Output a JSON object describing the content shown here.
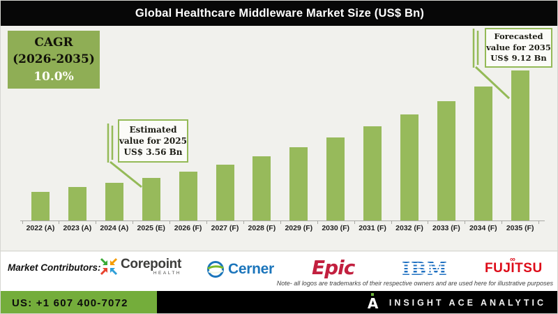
{
  "title_bar": {
    "title": "Global Healthcare Middleware Market Size (US$ Bn)"
  },
  "chart_data": {
    "type": "bar",
    "title": "Global Healthcare Middleware Market Size (US$ Bn)",
    "categories": [
      "2022 (A)",
      "2023 (A)",
      "2024 (A)",
      "2025 (E)",
      "2026 (F)",
      "2027 (F)",
      "2028 (F)",
      "2029 (F)",
      "2030 (F)",
      "2031 (F)",
      "2032 (F)",
      "2033 (F)",
      "2034 (F)",
      "2035 (F)"
    ],
    "values": [
      2.82,
      3.08,
      3.31,
      3.56,
      3.87,
      4.26,
      4.68,
      5.15,
      5.67,
      6.23,
      6.86,
      7.54,
      8.29,
      9.12
    ],
    "xlabel": "",
    "ylabel": "",
    "ylim": [
      1.35,
      10.0
    ],
    "grid": false,
    "legend": "none",
    "bar_color": "#97ba5b",
    "axis_color": "#a8a8a4",
    "background_color": "#f1f1ed",
    "cagr_pct_2026_2035": "10.0%",
    "annotations": {
      "cagr_box": {
        "line1": "CAGR",
        "line2": "(2026-2035)",
        "line3": "10.0%",
        "bg_color": "#8fae55"
      },
      "estimated": {
        "line1": "Estimated",
        "line2": "value for 2025",
        "line3": "US$ 3.56 Bn",
        "target_category": "2025 (E)",
        "value_bn": 3.56
      },
      "forecasted": {
        "line1": "Forecasted",
        "line2": "value for 2035",
        "line3": "US$ 9.12 Bn",
        "target_category": "2035 (F)",
        "value_bn": 9.12
      }
    }
  },
  "contributors": {
    "label": "Market Contributors:",
    "logos": [
      {
        "name": "Corepoint Health",
        "text": "Corepoint",
        "subtext": "HEALTH"
      },
      {
        "name": "Cerner",
        "text": "Cerner",
        "color": "#1b75bb"
      },
      {
        "name": "Epic",
        "text": "Epic",
        "color": "#c2203f"
      },
      {
        "name": "IBM",
        "text": "IBM",
        "color": "#1f70c1"
      },
      {
        "name": "Fujitsu",
        "text": "FUJITSU",
        "color": "#dd0b18"
      }
    ],
    "note": "Note- all logos are trademarks of their respective owners and are used here for illustrative purposes"
  },
  "footer": {
    "phone": "US: +1 607 400-7072",
    "brand": "INSIGHT ACE ANALYTIC",
    "green_color": "#74ad3b"
  }
}
